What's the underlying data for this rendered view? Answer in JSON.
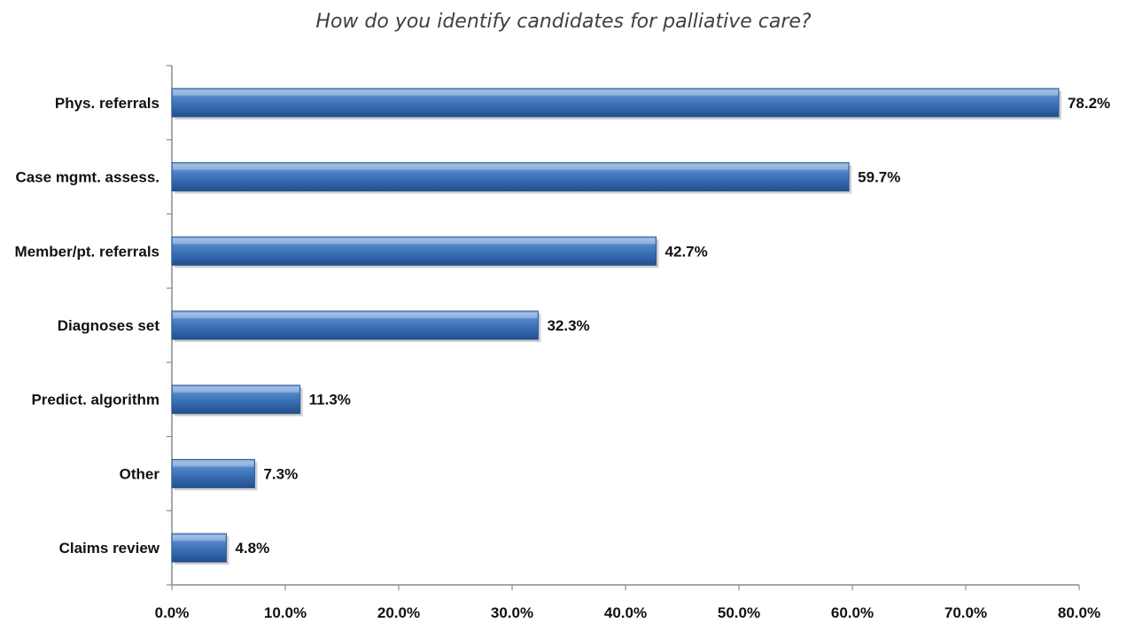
{
  "chart_data": {
    "type": "bar",
    "orientation": "horizontal",
    "title": "How do you identify candidates for palliative care?",
    "xlabel": "",
    "ylabel": "",
    "categories": [
      "Phys. referrals",
      "Case mgmt. assess.",
      "Member/pt. referrals",
      "Diagnoses set",
      "Predict. algorithm",
      "Other",
      "Claims review"
    ],
    "values": [
      78.2,
      59.7,
      42.7,
      32.3,
      11.3,
      7.3,
      4.8
    ],
    "value_labels": [
      "78.2%",
      "59.7%",
      "42.7%",
      "32.3%",
      "11.3%",
      "7.3%",
      "4.8%"
    ],
    "xlim": [
      0,
      80
    ],
    "x_ticks": [
      "0.0%",
      "10.0%",
      "20.0%",
      "30.0%",
      "40.0%",
      "50.0%",
      "60.0%",
      "70.0%",
      "80.0%"
    ],
    "grid": false,
    "legend": "none",
    "bar_color": "#3f74b8"
  }
}
